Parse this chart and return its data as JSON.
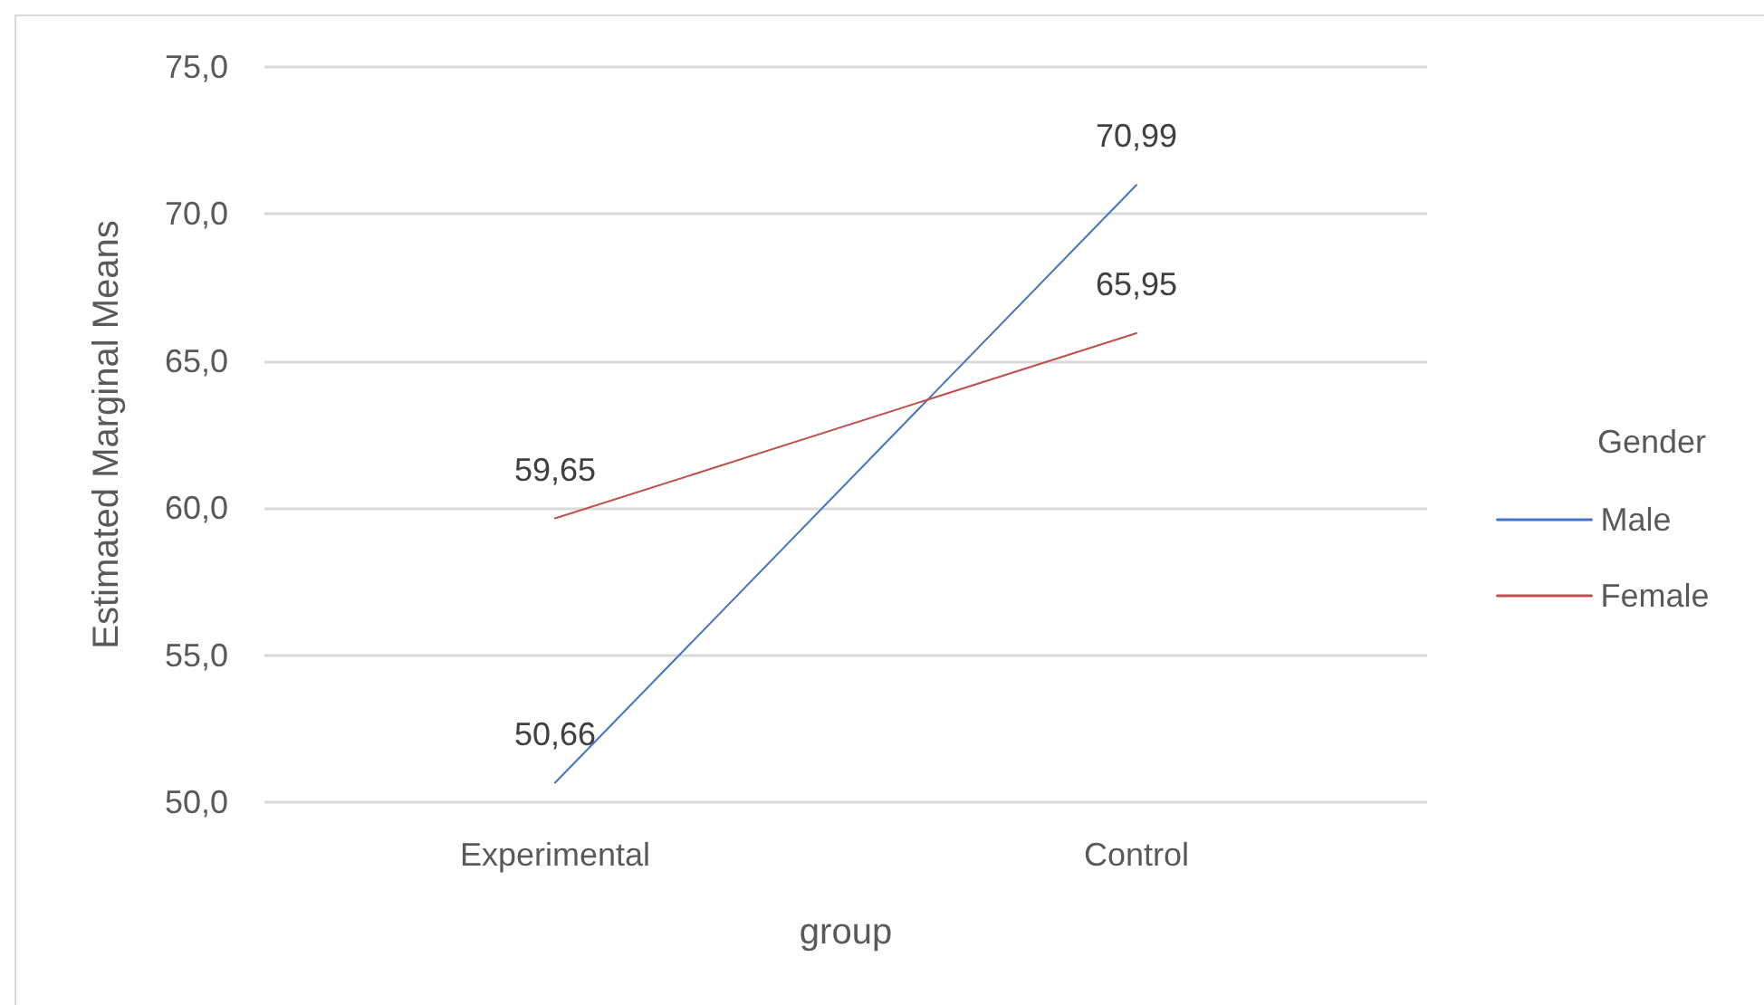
{
  "chart_data": {
    "type": "line",
    "xlabel": "group",
    "ylabel": "Estimated Marginal Means",
    "legend_title": "Gender",
    "categories": [
      "Experimental",
      "Control"
    ],
    "series": [
      {
        "name": "Male",
        "color": "#4472c4",
        "values": [
          50.66,
          70.99
        ],
        "value_labels": [
          "50,66",
          "70,99"
        ]
      },
      {
        "name": "Female",
        "color": "#c0504d",
        "values": [
          59.65,
          65.95
        ],
        "value_labels": [
          "59,65",
          "65,95"
        ]
      }
    ],
    "ylim": [
      50,
      75
    ],
    "yticks": [
      {
        "value": 50,
        "label": "50,0"
      },
      {
        "value": 55,
        "label": "55,0"
      },
      {
        "value": 60,
        "label": "60,0"
      },
      {
        "value": 65,
        "label": "65,0"
      },
      {
        "value": 70,
        "label": "70,0"
      },
      {
        "value": 75,
        "label": "75,0"
      }
    ],
    "grid": "y",
    "legend": "right",
    "marker": "none",
    "line_style": "solid"
  }
}
